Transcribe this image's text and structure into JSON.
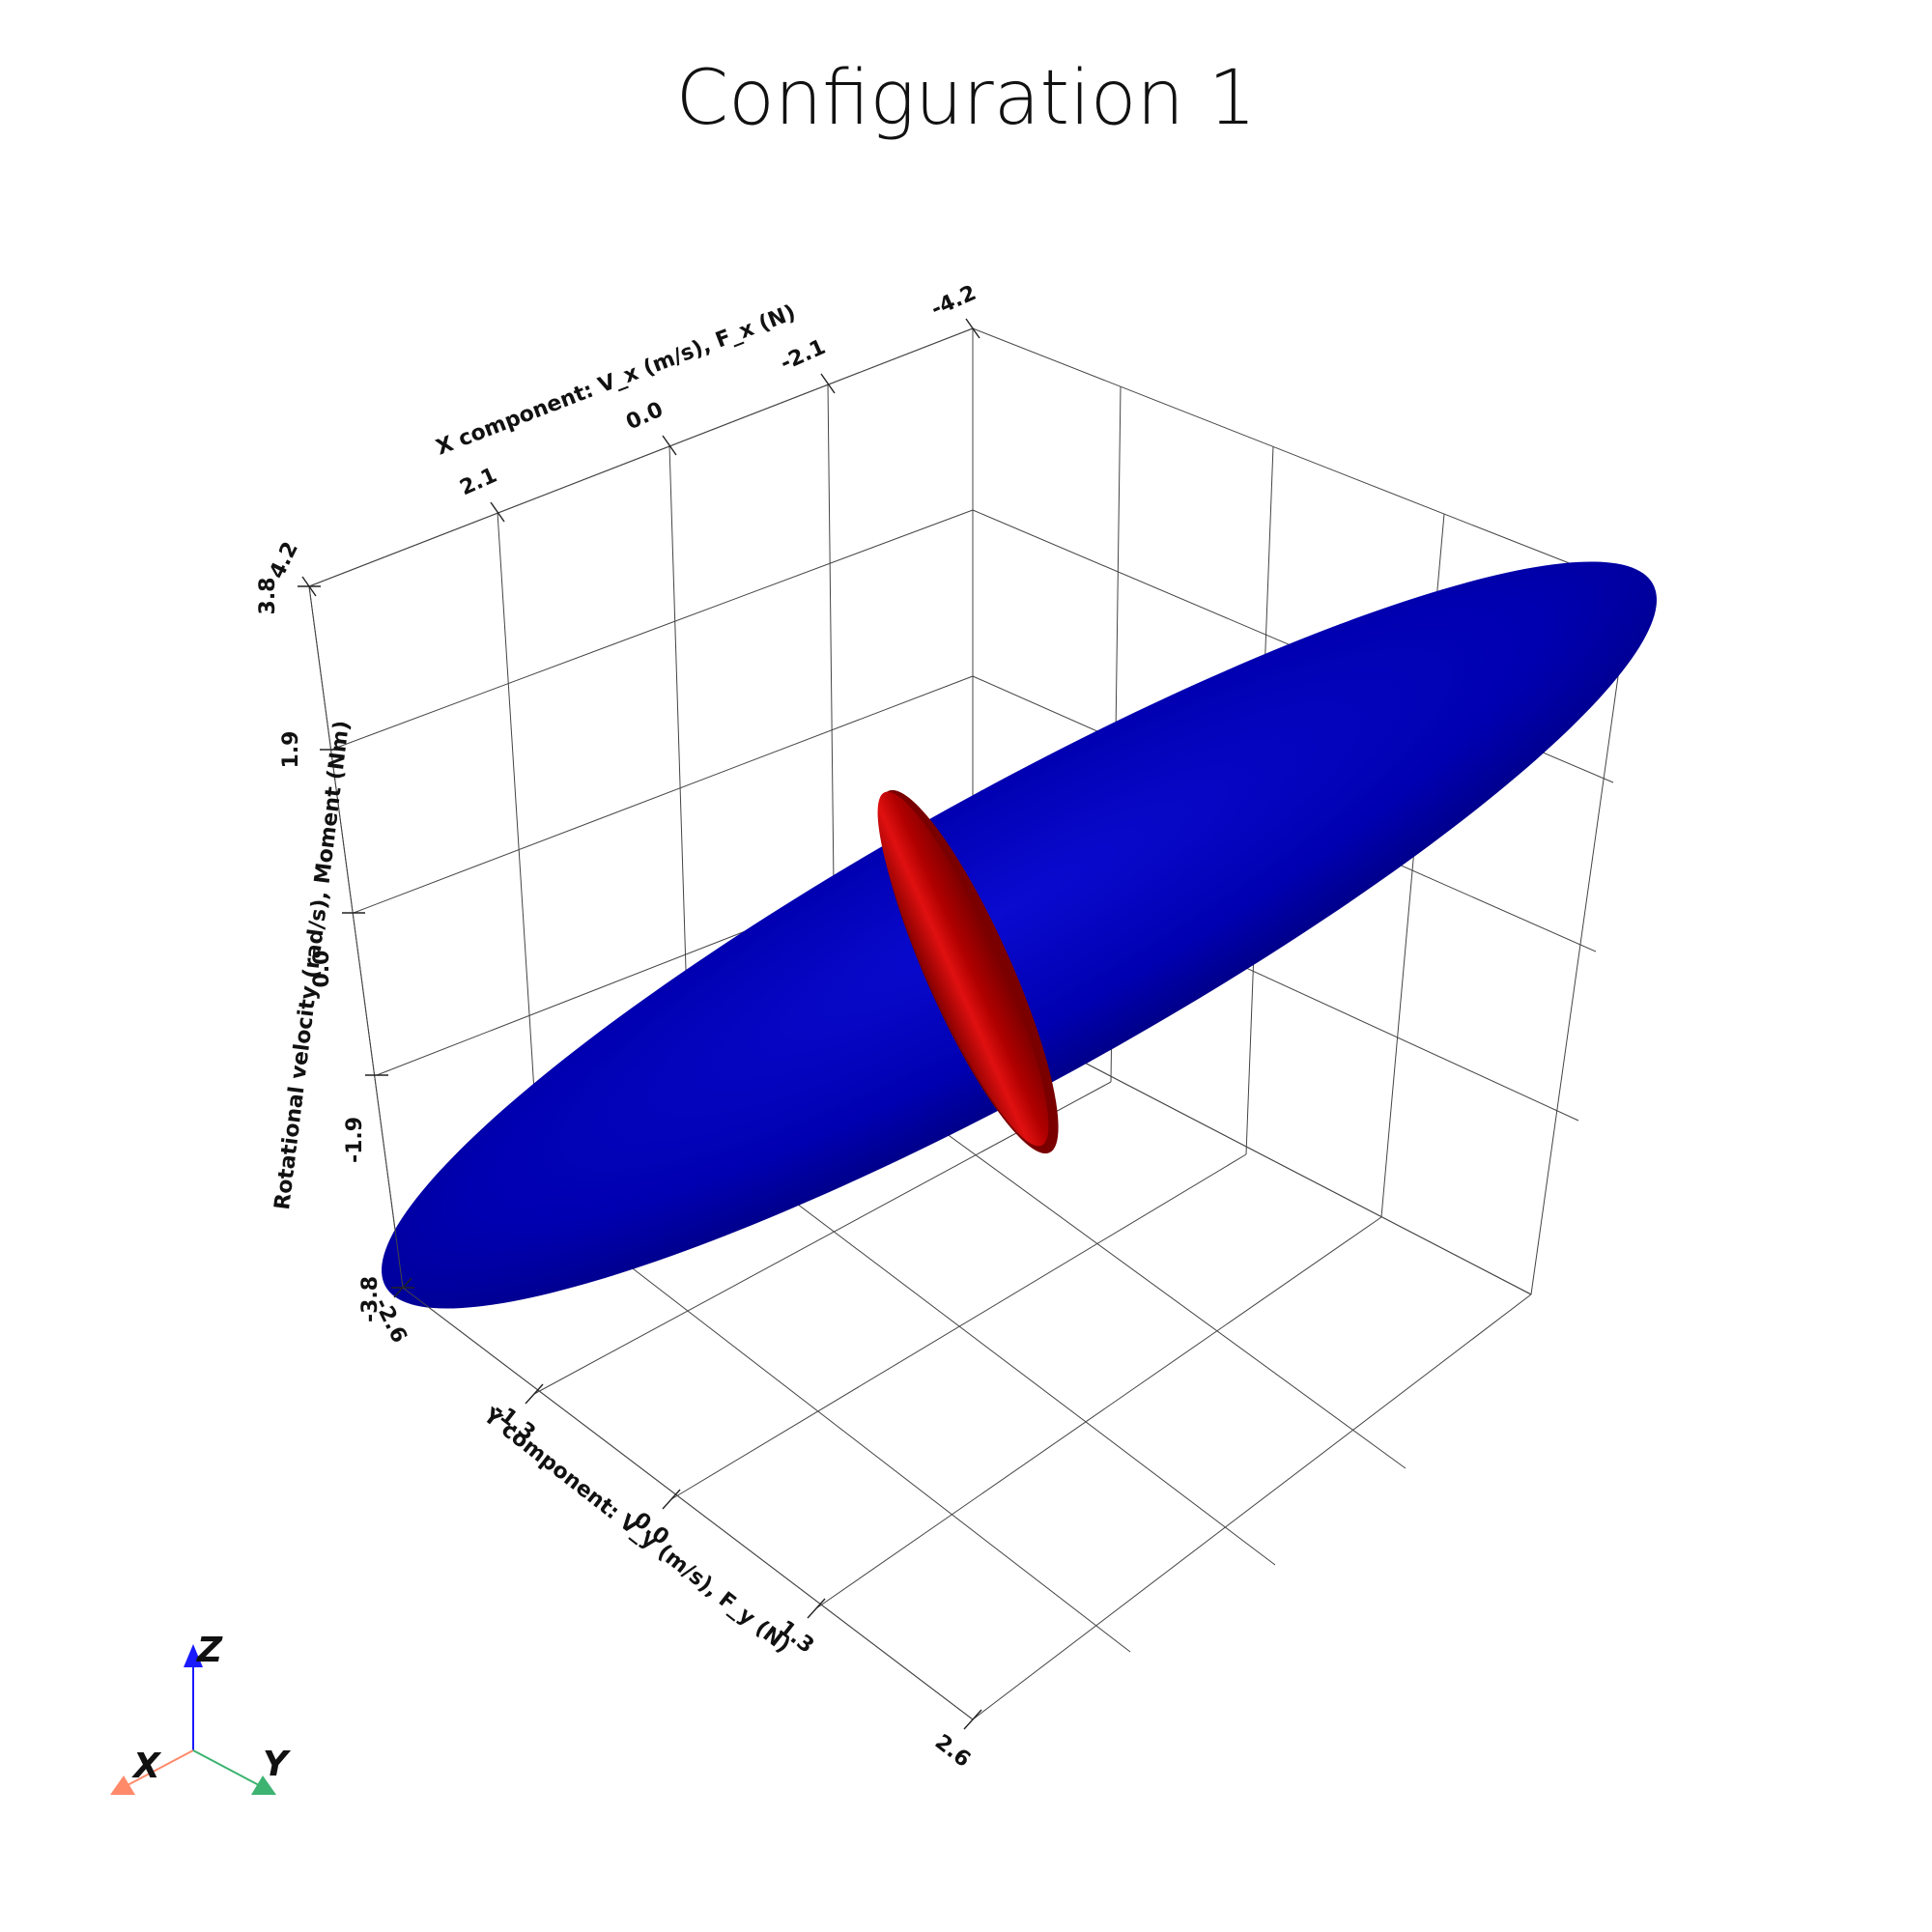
{
  "title": "Configuration 1",
  "axes": {
    "x": {
      "label": "X component: V_x (m/s), F_x (N)",
      "ticks": [
        "2.1",
        "0.0",
        "-2.1",
        "-4.2"
      ],
      "end_tick": "4.2"
    },
    "y": {
      "label": "Y component: V_y (m/s), F_y (N)",
      "ticks": [
        "-2.6",
        "-1.3",
        "0.0",
        "1.3",
        "2.6"
      ]
    },
    "z": {
      "label": "Rotational velocity (rad/s), Moment (Nm)",
      "ticks": [
        "-3.8",
        "-1.9",
        "0.0",
        "1.9",
        "3.8"
      ]
    }
  },
  "bodies": [
    {
      "name": "blue-ellipsoid",
      "color": "#0000b4"
    },
    {
      "name": "red-ellipsoid",
      "color": "#c00000"
    }
  ],
  "orientation_triad": {
    "z_label": "Z",
    "x_label": "X",
    "y_label": "Y",
    "z_color": "#1a1aff",
    "x_color": "#ff8a6a",
    "y_color": "#3cb371"
  }
}
